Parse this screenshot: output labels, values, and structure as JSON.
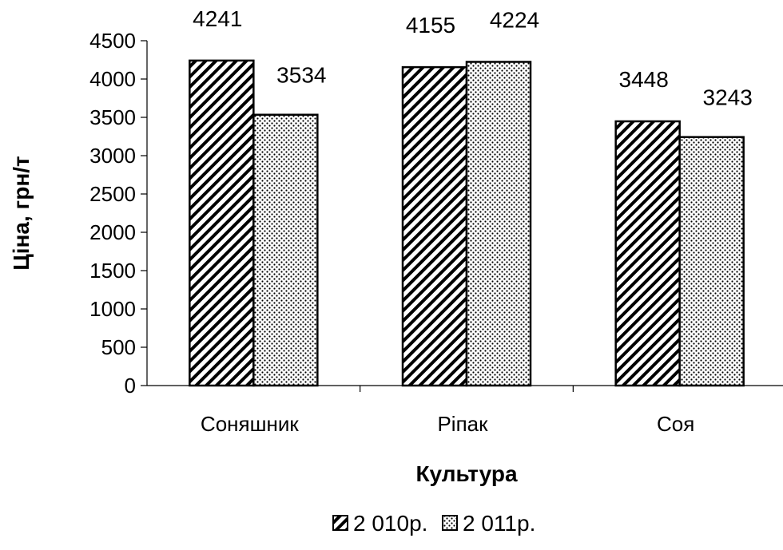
{
  "chart_data": {
    "type": "bar",
    "categories": [
      "Соняшник",
      "Ріпак",
      "Соя"
    ],
    "series": [
      {
        "name": "2 010р.",
        "values": [
          4241,
          4155,
          3448
        ],
        "pattern": "diagonal-hatch"
      },
      {
        "name": "2 011р.",
        "values": [
          3534,
          4224,
          3243
        ],
        "pattern": "dots"
      }
    ],
    "xlabel": "Культура",
    "ylabel": "Ціна, грн/т",
    "ylim": [
      0,
      4500
    ],
    "yticks": [
      0,
      500,
      1000,
      1500,
      2000,
      2500,
      3000,
      3500,
      4000,
      4500
    ],
    "grid": false,
    "legend_position": "bottom",
    "colors": {
      "bar_fill": "#ffffff",
      "bar_stroke": "#000000",
      "pattern": "#000000"
    }
  }
}
